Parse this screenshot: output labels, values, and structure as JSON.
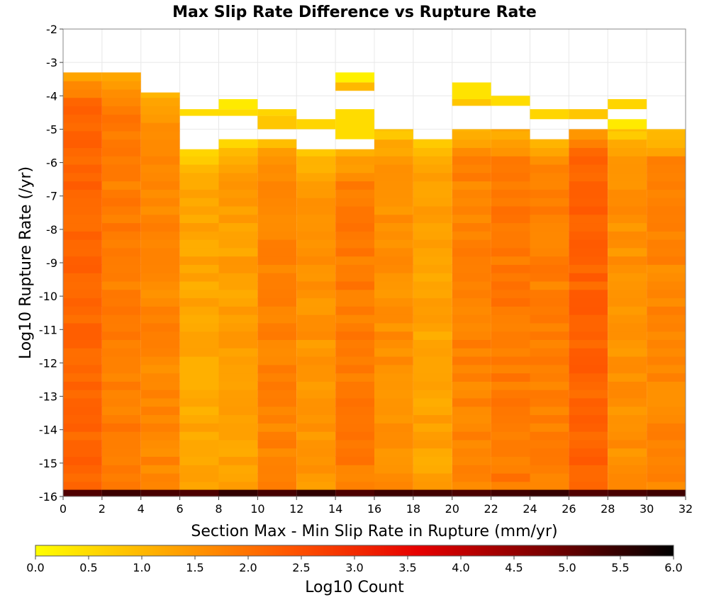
{
  "chart_data": {
    "type": "heatmap",
    "title": "Max Slip Rate Difference vs Rupture Rate",
    "xlabel": "Section Max - Min Slip Rate in Rupture (mm/yr)",
    "ylabel": "Log10 Rupture Rate (/yr)",
    "xlim": [
      0,
      32
    ],
    "ylim": [
      -16,
      -2
    ],
    "x_ticks": [
      "0",
      "2",
      "4",
      "6",
      "8",
      "10",
      "12",
      "14",
      "16",
      "18",
      "20",
      "22",
      "24",
      "26",
      "28",
      "30",
      "32"
    ],
    "y_ticks": [
      "-2",
      "-3",
      "-4",
      "-5",
      "-6",
      "-7",
      "-8",
      "-9",
      "-10",
      "-11",
      "-12",
      "-13",
      "-14",
      "-15",
      "-16"
    ],
    "x_bin_width": 2,
    "columns": [
      {
        "x": [
          0,
          2
        ],
        "top": -3.3,
        "base": 2.15
      },
      {
        "x": [
          2,
          4
        ],
        "top": -3.3,
        "base": 1.85
      },
      {
        "x": [
          4,
          6
        ],
        "top": -3.9,
        "base": 1.7
      },
      {
        "x": [
          6,
          8
        ],
        "top": -5.6,
        "base": 1.25
      },
      {
        "x": [
          8,
          10
        ],
        "top": -5.3,
        "base": 1.35
      },
      {
        "x": [
          10,
          12
        ],
        "top": -5.3,
        "base": 1.75
      },
      {
        "x": [
          12,
          14
        ],
        "top": -5.6,
        "base": 1.5
      },
      {
        "x": [
          14,
          16
        ],
        "top": -5.6,
        "base": 1.85
      },
      {
        "x": [
          16,
          18
        ],
        "top": -5.0,
        "base": 1.6
      },
      {
        "x": [
          18,
          20
        ],
        "top": -5.3,
        "base": 1.3
      },
      {
        "x": [
          20,
          22
        ],
        "top": -5.0,
        "base": 1.75
      },
      {
        "x": [
          22,
          24
        ],
        "top": -5.0,
        "base": 1.9
      },
      {
        "x": [
          24,
          26
        ],
        "top": -5.3,
        "base": 1.8
      },
      {
        "x": [
          26,
          28
        ],
        "top": -5.0,
        "base": 2.2
      },
      {
        "x": [
          28,
          30
        ],
        "top": -5.0,
        "base": 1.55
      },
      {
        "x": [
          30,
          32
        ],
        "top": -5.0,
        "base": 1.7
      }
    ],
    "isolated_cells": [
      {
        "x": [
          14,
          16
        ],
        "y": [
          -3.6,
          -3.3
        ],
        "value": 0.2
      },
      {
        "x": [
          14,
          16
        ],
        "y": [
          -3.85,
          -3.6
        ],
        "value": 1.0
      },
      {
        "x": [
          6,
          8
        ],
        "y": [
          -4.6,
          -4.4
        ],
        "value": 0.5
      },
      {
        "x": [
          8,
          10
        ],
        "y": [
          -4.6,
          -4.4
        ],
        "value": 0.5
      },
      {
        "x": [
          8,
          10
        ],
        "y": [
          -4.4,
          -4.1
        ],
        "value": 0.3
      },
      {
        "x": [
          10,
          12
        ],
        "y": [
          -4.6,
          -4.4
        ],
        "value": 0.6
      },
      {
        "x": [
          10,
          12
        ],
        "y": [
          -5.0,
          -4.6
        ],
        "value": 0.8
      },
      {
        "x": [
          12,
          14
        ],
        "y": [
          -5.0,
          -4.7
        ],
        "value": 0.6
      },
      {
        "x": [
          14,
          16
        ],
        "y": [
          -5.3,
          -4.4
        ],
        "value": 0.5
      },
      {
        "x": [
          20,
          22
        ],
        "y": [
          -4.1,
          -3.6
        ],
        "value": 0.4
      },
      {
        "x": [
          20,
          22
        ],
        "y": [
          -4.3,
          -4.1
        ],
        "value": 0.8
      },
      {
        "x": [
          22,
          24
        ],
        "y": [
          -4.3,
          -4.0
        ],
        "value": 0.5
      },
      {
        "x": [
          24,
          26
        ],
        "y": [
          -4.7,
          -4.4
        ],
        "value": 0.6
      },
      {
        "x": [
          26,
          28
        ],
        "y": [
          -4.7,
          -4.4
        ],
        "value": 0.8
      },
      {
        "x": [
          28,
          30
        ],
        "y": [
          -4.4,
          -4.1
        ],
        "value": 0.6
      },
      {
        "x": [
          28,
          30
        ],
        "y": [
          -5.0,
          -4.7
        ],
        "value": 0.3
      }
    ],
    "bottom_row": {
      "y": [
        -16.0,
        -15.8
      ],
      "value": 5.4
    },
    "colorbar": {
      "label": "Log10 Count",
      "range": [
        0,
        6
      ],
      "ticks": [
        "0.0",
        "0.5",
        "1.0",
        "1.5",
        "2.0",
        "2.5",
        "3.0",
        "3.5",
        "4.0",
        "4.5",
        "5.0",
        "5.5",
        "6.0"
      ],
      "colors": [
        "#ffff00",
        "#ffaa00",
        "#ff5500",
        "#e60000",
        "#7a0000",
        "#000000"
      ]
    },
    "grid": true
  }
}
